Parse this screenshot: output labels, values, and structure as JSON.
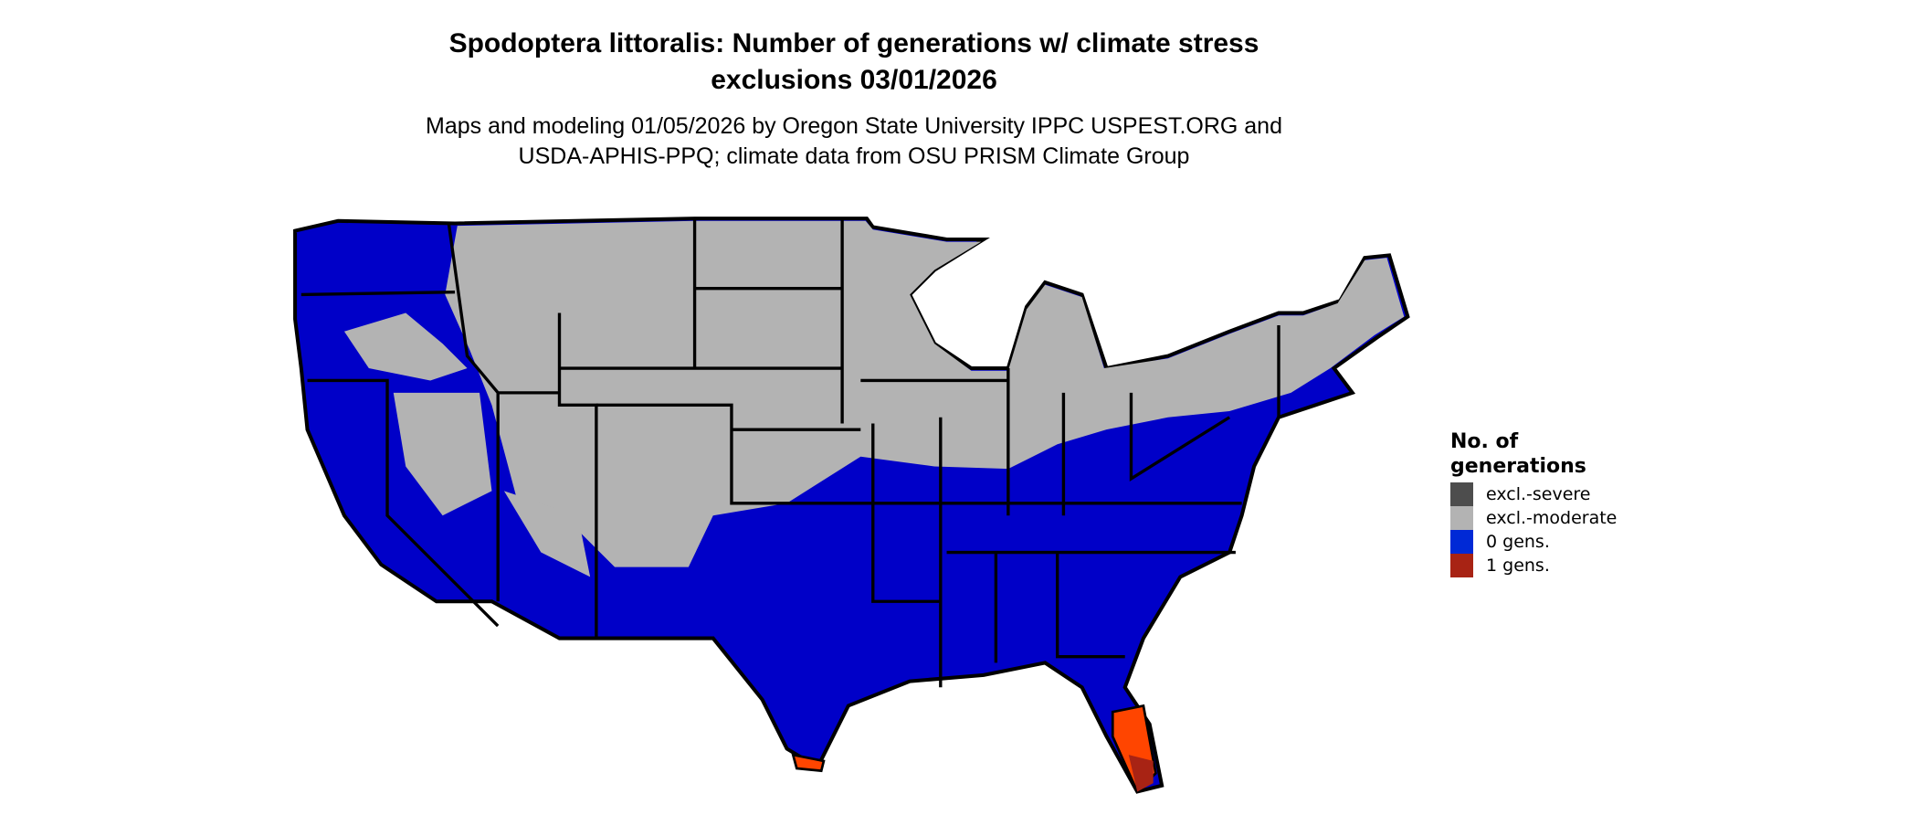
{
  "title": [
    "Spodoptera littoralis: Number of generations w/ climate stress",
    "exclusions 03/01/2026"
  ],
  "subtitle": [
    "Maps and modeling 01/05/2026 by Oregon State University IPPC USPEST.ORG and",
    "USDA-APHIS-PPQ; climate data from OSU PRISM Climate Group"
  ],
  "map": {
    "region": "Contiguous United States",
    "dominant_category": "0 gens.",
    "northern_category": "excl.-moderate",
    "southern_tip_category": "1 gens."
  },
  "legend": {
    "title": [
      "No. of",
      "generations"
    ],
    "items": [
      {
        "label": "excl.-severe",
        "color": "#4d4d4d"
      },
      {
        "label": "excl.-moderate",
        "color": "#b3b3b3"
      },
      {
        "label": "0 gens.",
        "color": "#0029d6"
      },
      {
        "label": "1 gens.",
        "color": "#a82314"
      }
    ]
  },
  "colors": {
    "map_blue": "#0000c8",
    "map_gray": "#b3b3b3",
    "map_red": "#ff4500",
    "map_darkred": "#a82314",
    "borders": "#000000"
  }
}
